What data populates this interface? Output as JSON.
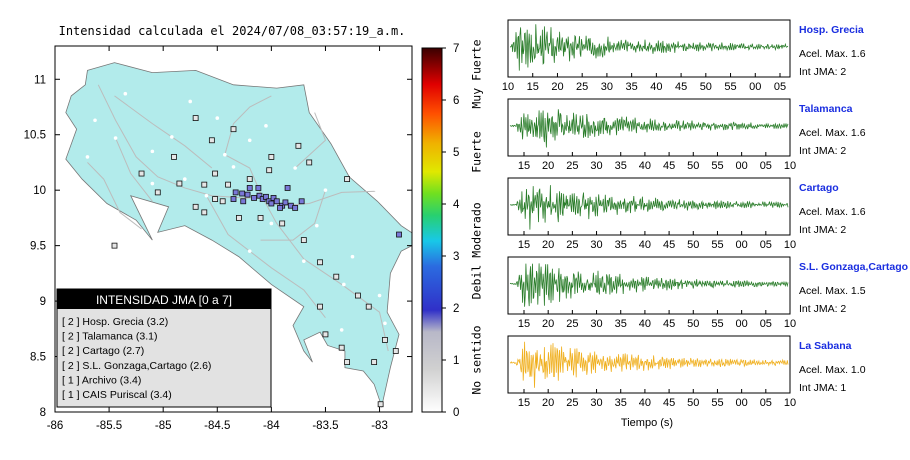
{
  "map": {
    "title": "Intensidad calculada el 2024/07/08_03:57:19_a.m.",
    "lon_range": [
      -86,
      -82.7
    ],
    "lat_range": [
      8,
      11.3
    ],
    "x_ticks": [
      "-86",
      "-85.5",
      "-85",
      "-84.5",
      "-84",
      "-83.5",
      "-83"
    ],
    "y_ticks": [
      "8",
      "8.5",
      "9",
      "9.5",
      "10",
      "10.5",
      "11"
    ],
    "land_color": "#b2ebeb",
    "stations": [
      [
        -84.55,
        10.45
      ],
      [
        -84.52,
        10.15
      ],
      [
        -84.02,
        10.18
      ],
      [
        -84.33,
        9.98
      ],
      [
        -84.27,
        9.97
      ],
      [
        -84.22,
        9.96
      ],
      [
        -84.2,
        10.02
      ],
      [
        -84.16,
        9.93
      ],
      [
        -84.11,
        9.95
      ],
      [
        -84.08,
        9.92
      ],
      [
        -84.05,
        9.94
      ],
      [
        -84.02,
        9.9
      ],
      [
        -83.98,
        9.93
      ],
      [
        -84.0,
        9.88
      ],
      [
        -83.95,
        9.9
      ],
      [
        -83.9,
        9.86
      ],
      [
        -83.92,
        9.84
      ],
      [
        -83.87,
        9.89
      ],
      [
        -83.82,
        9.86
      ],
      [
        -83.78,
        9.84
      ],
      [
        -83.72,
        9.9
      ],
      [
        -84.12,
        10.02
      ],
      [
        -84.35,
        9.92
      ],
      [
        -84.45,
        9.9
      ],
      [
        -84.52,
        9.92
      ],
      [
        -84.62,
        9.8
      ],
      [
        -84.7,
        9.85
      ],
      [
        -84.85,
        10.06
      ],
      [
        -85.05,
        9.98
      ],
      [
        -85.45,
        9.5
      ],
      [
        -84.3,
        9.75
      ],
      [
        -84.1,
        9.75
      ],
      [
        -83.9,
        9.7
      ],
      [
        -83.7,
        9.55
      ],
      [
        -83.55,
        9.35
      ],
      [
        -83.4,
        9.22
      ],
      [
        -83.2,
        9.05
      ],
      [
        -83.1,
        8.95
      ],
      [
        -83.55,
        8.95
      ],
      [
        -83.5,
        8.7
      ],
      [
        -83.35,
        8.58
      ],
      [
        -83.3,
        8.45
      ],
      [
        -82.95,
        8.65
      ],
      [
        -82.85,
        8.55
      ],
      [
        -83.05,
        8.45
      ],
      [
        -82.99,
        8.07
      ],
      [
        -82.82,
        9.6
      ],
      [
        -83.3,
        10.1
      ],
      [
        -83.65,
        10.25
      ],
      [
        -83.75,
        10.4
      ],
      [
        -84.0,
        10.3
      ],
      [
        -84.35,
        10.55
      ],
      [
        -84.7,
        10.65
      ],
      [
        -85.2,
        10.15
      ],
      [
        -84.9,
        10.3
      ],
      [
        -84.62,
        10.05
      ],
      [
        -84.4,
        10.05
      ],
      [
        -84.2,
        10.1
      ],
      [
        -83.85,
        10.02
      ],
      [
        -84.26,
        9.9
      ]
    ],
    "cities": [
      [
        -85.63,
        10.63
      ],
      [
        -85.44,
        10.47
      ],
      [
        -85.1,
        10.35
      ],
      [
        -84.43,
        10.32
      ],
      [
        -84.2,
        10.45
      ],
      [
        -83.78,
        10.2
      ],
      [
        -83.5,
        10.0
      ],
      [
        -83.03,
        10.0
      ],
      [
        -84.08,
        9.93
      ],
      [
        -84.6,
        9.95
      ],
      [
        -85.1,
        10.06
      ],
      [
        -84.83,
        9.62
      ],
      [
        -84.2,
        9.45
      ],
      [
        -83.7,
        9.36
      ],
      [
        -83.33,
        9.15
      ],
      [
        -83.0,
        9.05
      ],
      [
        -83.35,
        8.74
      ],
      [
        -82.95,
        8.8
      ],
      [
        -84.8,
        10.1
      ],
      [
        -84.35,
        10.21
      ],
      [
        -84.92,
        10.48
      ],
      [
        -85.35,
        10.87
      ],
      [
        -84.05,
        10.58
      ],
      [
        -84.75,
        10.8
      ],
      [
        -85.7,
        10.3
      ],
      [
        -83.58,
        9.68
      ],
      [
        -84.0,
        9.7
      ],
      [
        -83.25,
        9.4
      ],
      [
        -85.2,
        9.8
      ],
      [
        -84.5,
        10.65
      ]
    ]
  },
  "colorbar": {
    "min": 0,
    "max": 7,
    "ticks": [
      "0",
      "1",
      "2",
      "3",
      "4",
      "5",
      "6",
      "7"
    ],
    "bands": [
      {
        "label": "No sentido",
        "from": 0,
        "to": 2
      },
      {
        "label": "Debil",
        "from": 2,
        "to": 3
      },
      {
        "label": "Moderado",
        "from": 3,
        "to": 4
      },
      {
        "label": "Fuerte",
        "from": 4,
        "to": 6
      },
      {
        "label": "Muy Fuerte",
        "from": 6,
        "to": 7
      }
    ]
  },
  "legend": {
    "title": "INTENSIDAD JMA [0 a 7]",
    "entries": [
      "[ 2 ]  Hosp. Grecia (3.2)",
      "[ 2 ]  Talamanca (3.1)",
      "[ 2 ]  Cartago (2.7)",
      "[ 2 ]  S.L. Gonzaga,Cartago (2.6)",
      "[ 1 ]  Archivo (3.4)",
      "[ 1 ]  CAIS Puriscal (3.4)"
    ]
  },
  "chart_data": [
    {
      "type": "line",
      "name": "Hosp. Grecia",
      "accel_max": "Acel. Max. 1.6",
      "int_jma": "Int JMA: 2",
      "x_ticks": [
        "10",
        "15",
        "20",
        "25",
        "30",
        "35",
        "40",
        "45",
        "50",
        "55",
        "00",
        "05"
      ],
      "color": "#2a7d2a",
      "seed": 3,
      "onset": 0.0
    },
    {
      "type": "line",
      "name": "Talamanca",
      "accel_max": "Acel. Max. 1.6",
      "int_jma": "Int JMA: 2",
      "x_ticks": [
        "15",
        "20",
        "25",
        "30",
        "35",
        "40",
        "45",
        "50",
        "55",
        "00",
        "05",
        "10"
      ],
      "color": "#2a7d2a",
      "seed": 7,
      "onset": 0.02
    },
    {
      "type": "line",
      "name": "Cartago",
      "accel_max": "Acel. Max. 1.6",
      "int_jma": "Int JMA: 2",
      "x_ticks": [
        "15",
        "20",
        "25",
        "30",
        "35",
        "40",
        "45",
        "50",
        "55",
        "00",
        "05",
        "10"
      ],
      "color": "#2a7d2a",
      "seed": 11,
      "onset": 0.02
    },
    {
      "type": "line",
      "name": "S.L. Gonzaga,Cartago",
      "accel_max": "Acel. Max. 1.5",
      "int_jma": "Int JMA: 2",
      "x_ticks": [
        "15",
        "20",
        "25",
        "30",
        "35",
        "40",
        "45",
        "50",
        "55",
        "00",
        "05",
        "10"
      ],
      "color": "#2a7d2a",
      "seed": 19,
      "onset": 0.02
    },
    {
      "type": "line",
      "name": "La Sabana",
      "accel_max": "Acel. Max. 1.0",
      "int_jma": "Int JMA: 1",
      "x_ticks": [
        "15",
        "20",
        "25",
        "30",
        "35",
        "40",
        "45",
        "50",
        "55",
        "00",
        "05",
        "10"
      ],
      "color": "#f0b020",
      "seed": 29,
      "onset": 0.02
    }
  ],
  "seismo_xlabel": "Tiempo (s)"
}
